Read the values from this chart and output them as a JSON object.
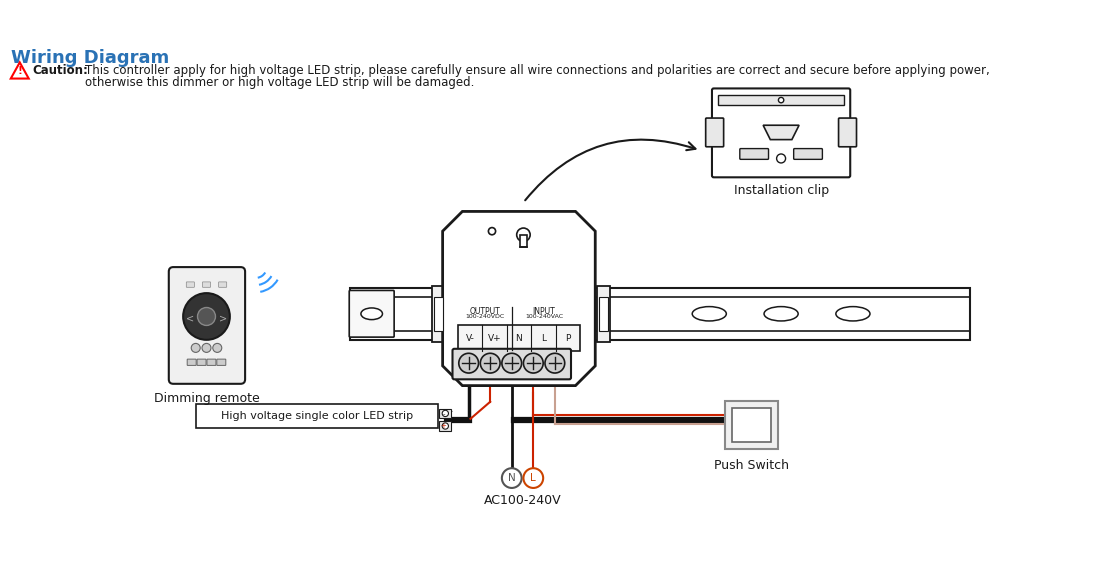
{
  "title": "Wiring Diagram",
  "title_color": "#2a72b5",
  "title_fontsize": 13,
  "caution_text_line1": "This controller apply for high voltage LED strip, please carefully ensure all wire connections and polarities are correct and secure before applying power,",
  "caution_text_line2": "otherwise this dimmer or high voltage LED strip will be damaged.",
  "caution_bold": "Caution:",
  "bg_color": "#ffffff",
  "dark_color": "#1a1a1a",
  "gray_color": "#888888",
  "dim_remote_label": "Dimming remote",
  "led_strip_label": "High voltage single color LED strip",
  "install_clip_label": "Installation clip",
  "push_switch_label": "Push Switch",
  "ac_label": "AC100-240V",
  "output_label1": "OUTPUT",
  "output_label2": "100-240VDC",
  "input_label1": "INPUT",
  "input_label2": "100-240VAC",
  "terminal_labels": [
    "V-",
    "V+",
    "N",
    "L",
    "P"
  ],
  "black_wire": "#111111",
  "red_wire": "#cc2200",
  "tan_wire": "#c8a090",
  "pink_wire": "#e08080"
}
